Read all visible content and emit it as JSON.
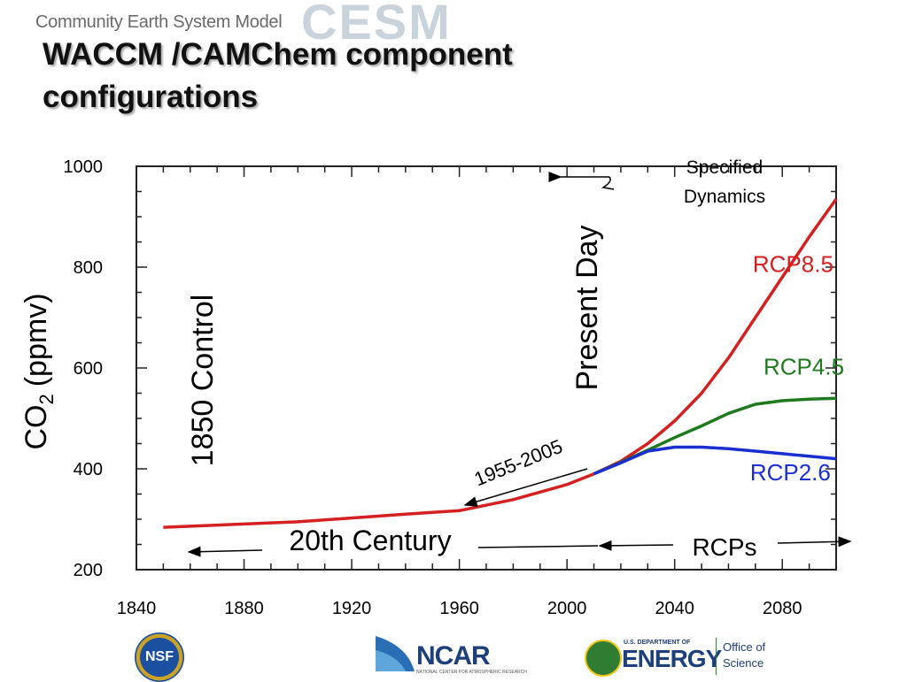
{
  "header": {
    "org": "Community Earth System Model",
    "logo_text": "CESM",
    "title_line1": "WACCM /CAMChem component",
    "title_line2": "configurations"
  },
  "chart_data": {
    "type": "line",
    "xlim": [
      1840,
      2100
    ],
    "ylim": [
      200,
      1000
    ],
    "x_ticks": [
      "1840",
      "1880",
      "1920",
      "1960",
      "2000",
      "2040",
      "2080"
    ],
    "y_ticks": [
      "200",
      "400",
      "600",
      "800",
      "1000"
    ],
    "ylabel_main": "CO",
    "ylabel_sub": "2",
    "ylabel_unit": "(ppmv)",
    "series": [
      {
        "name": "RCP8.5",
        "color": "#d42020",
        "x": [
          1850,
          1900,
          1940,
          1960,
          1980,
          2000,
          2010,
          2020,
          2030,
          2040,
          2050,
          2060,
          2070,
          2080,
          2090,
          2100
        ],
        "y": [
          284,
          295,
          310,
          317,
          339,
          369,
          390,
          415,
          450,
          495,
          550,
          620,
          700,
          780,
          860,
          935
        ]
      },
      {
        "name": "RCP4.5",
        "color": "#1f7a1f",
        "x": [
          2010,
          2020,
          2030,
          2040,
          2050,
          2060,
          2070,
          2080,
          2090,
          2100
        ],
        "y": [
          390,
          413,
          437,
          462,
          485,
          510,
          528,
          535,
          538,
          540
        ]
      },
      {
        "name": "RCP2.6",
        "color": "#1a2fd0",
        "x": [
          2010,
          2020,
          2030,
          2040,
          2050,
          2060,
          2070,
          2080,
          2090,
          2100
        ],
        "y": [
          390,
          412,
          435,
          443,
          443,
          440,
          435,
          430,
          425,
          420
        ]
      }
    ],
    "annotations": {
      "control": "1850 Control",
      "present_day": "Present Day",
      "specified": "Specified Dynamics",
      "range_1955": "1955-2005",
      "twentieth": "20th Century",
      "rcps": "RCPs"
    }
  },
  "footer": {
    "nsf": "NSF",
    "ncar": "NCAR",
    "ncar_sub": "NATIONAL CENTER FOR ATMOSPHERIC RESEARCH",
    "doe_small": "U.S. DEPARTMENT OF",
    "doe_big": "ENERGY",
    "doe_office_1": "Office of",
    "doe_office_2": "Science"
  }
}
